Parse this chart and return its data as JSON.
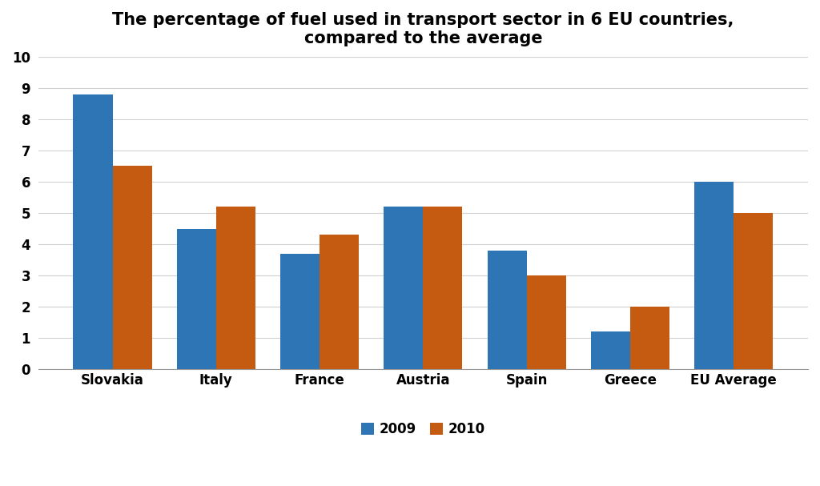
{
  "title": "The percentage of fuel used in transport sector in 6 EU countries,\ncompared to the average",
  "categories": [
    "Slovakia",
    "Italy",
    "France",
    "Austria",
    "Spain",
    "Greece",
    "EU Average"
  ],
  "values_2009": [
    8.8,
    4.5,
    3.7,
    5.2,
    3.8,
    1.2,
    6.0
  ],
  "values_2010": [
    6.5,
    5.2,
    4.3,
    5.2,
    3.0,
    2.0,
    5.0
  ],
  "color_2009": "#2E75B6",
  "color_2010": "#C55A11",
  "legend_labels": [
    "2009",
    "2010"
  ],
  "ylim": [
    0,
    10
  ],
  "yticks": [
    0,
    1,
    2,
    3,
    4,
    5,
    6,
    7,
    8,
    9,
    10
  ],
  "title_fontsize": 15,
  "tick_fontsize": 12,
  "legend_fontsize": 12,
  "bar_width": 0.38,
  "background_color": "#ffffff",
  "grid_color": "#d0d0d0"
}
